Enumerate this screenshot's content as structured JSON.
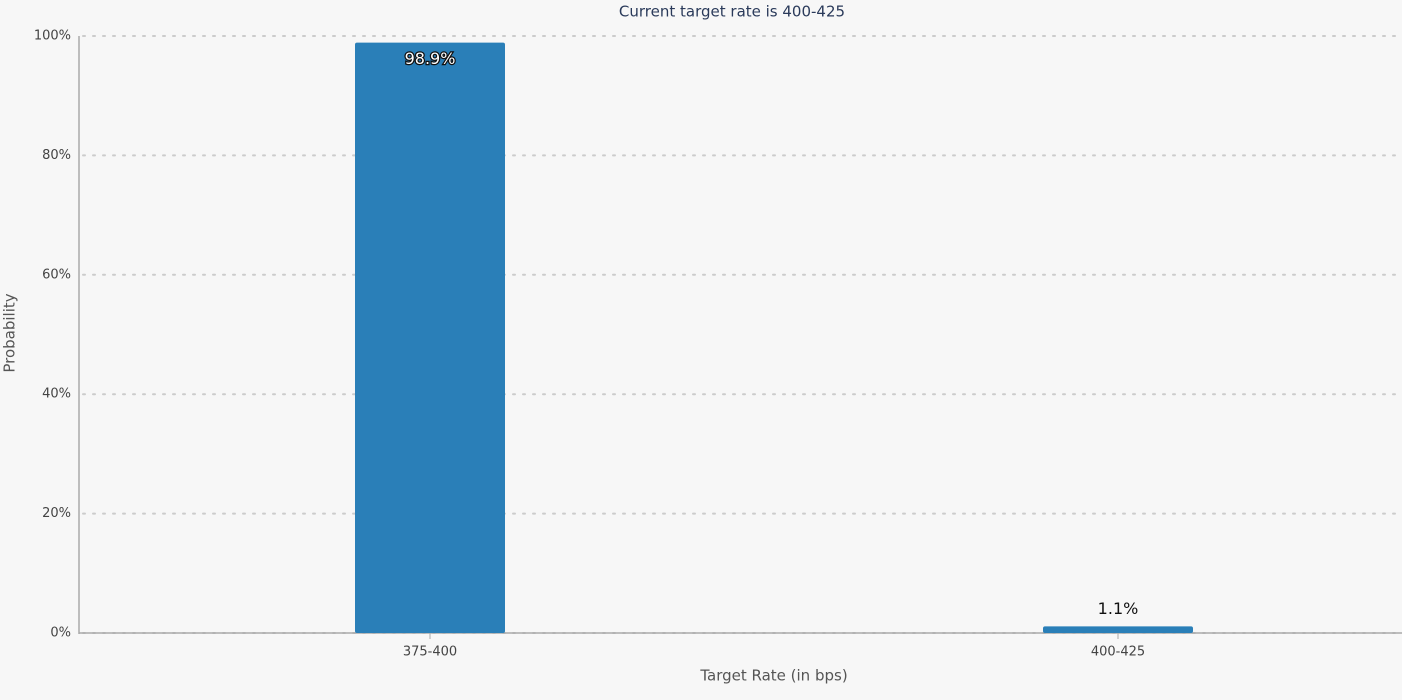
{
  "chart_data": {
    "type": "bar",
    "title": "Current target rate is 400-425",
    "x_label": "Target Rate (in bps)",
    "y_label": "Probability",
    "categories": [
      "375-400",
      "400-425"
    ],
    "values": [
      98.9,
      1.1
    ],
    "value_labels": [
      "98.9%",
      "1.1%"
    ],
    "color": "#2a7fb8",
    "ylim": [
      0,
      100
    ],
    "yticks": [
      {
        "value": 0,
        "label": "0%"
      },
      {
        "value": 20,
        "label": "20%"
      },
      {
        "value": 40,
        "label": "40%"
      },
      {
        "value": 60,
        "label": "60%"
      },
      {
        "value": 80,
        "label": "80%"
      },
      {
        "value": 100,
        "label": "100%"
      }
    ],
    "grid": true
  }
}
